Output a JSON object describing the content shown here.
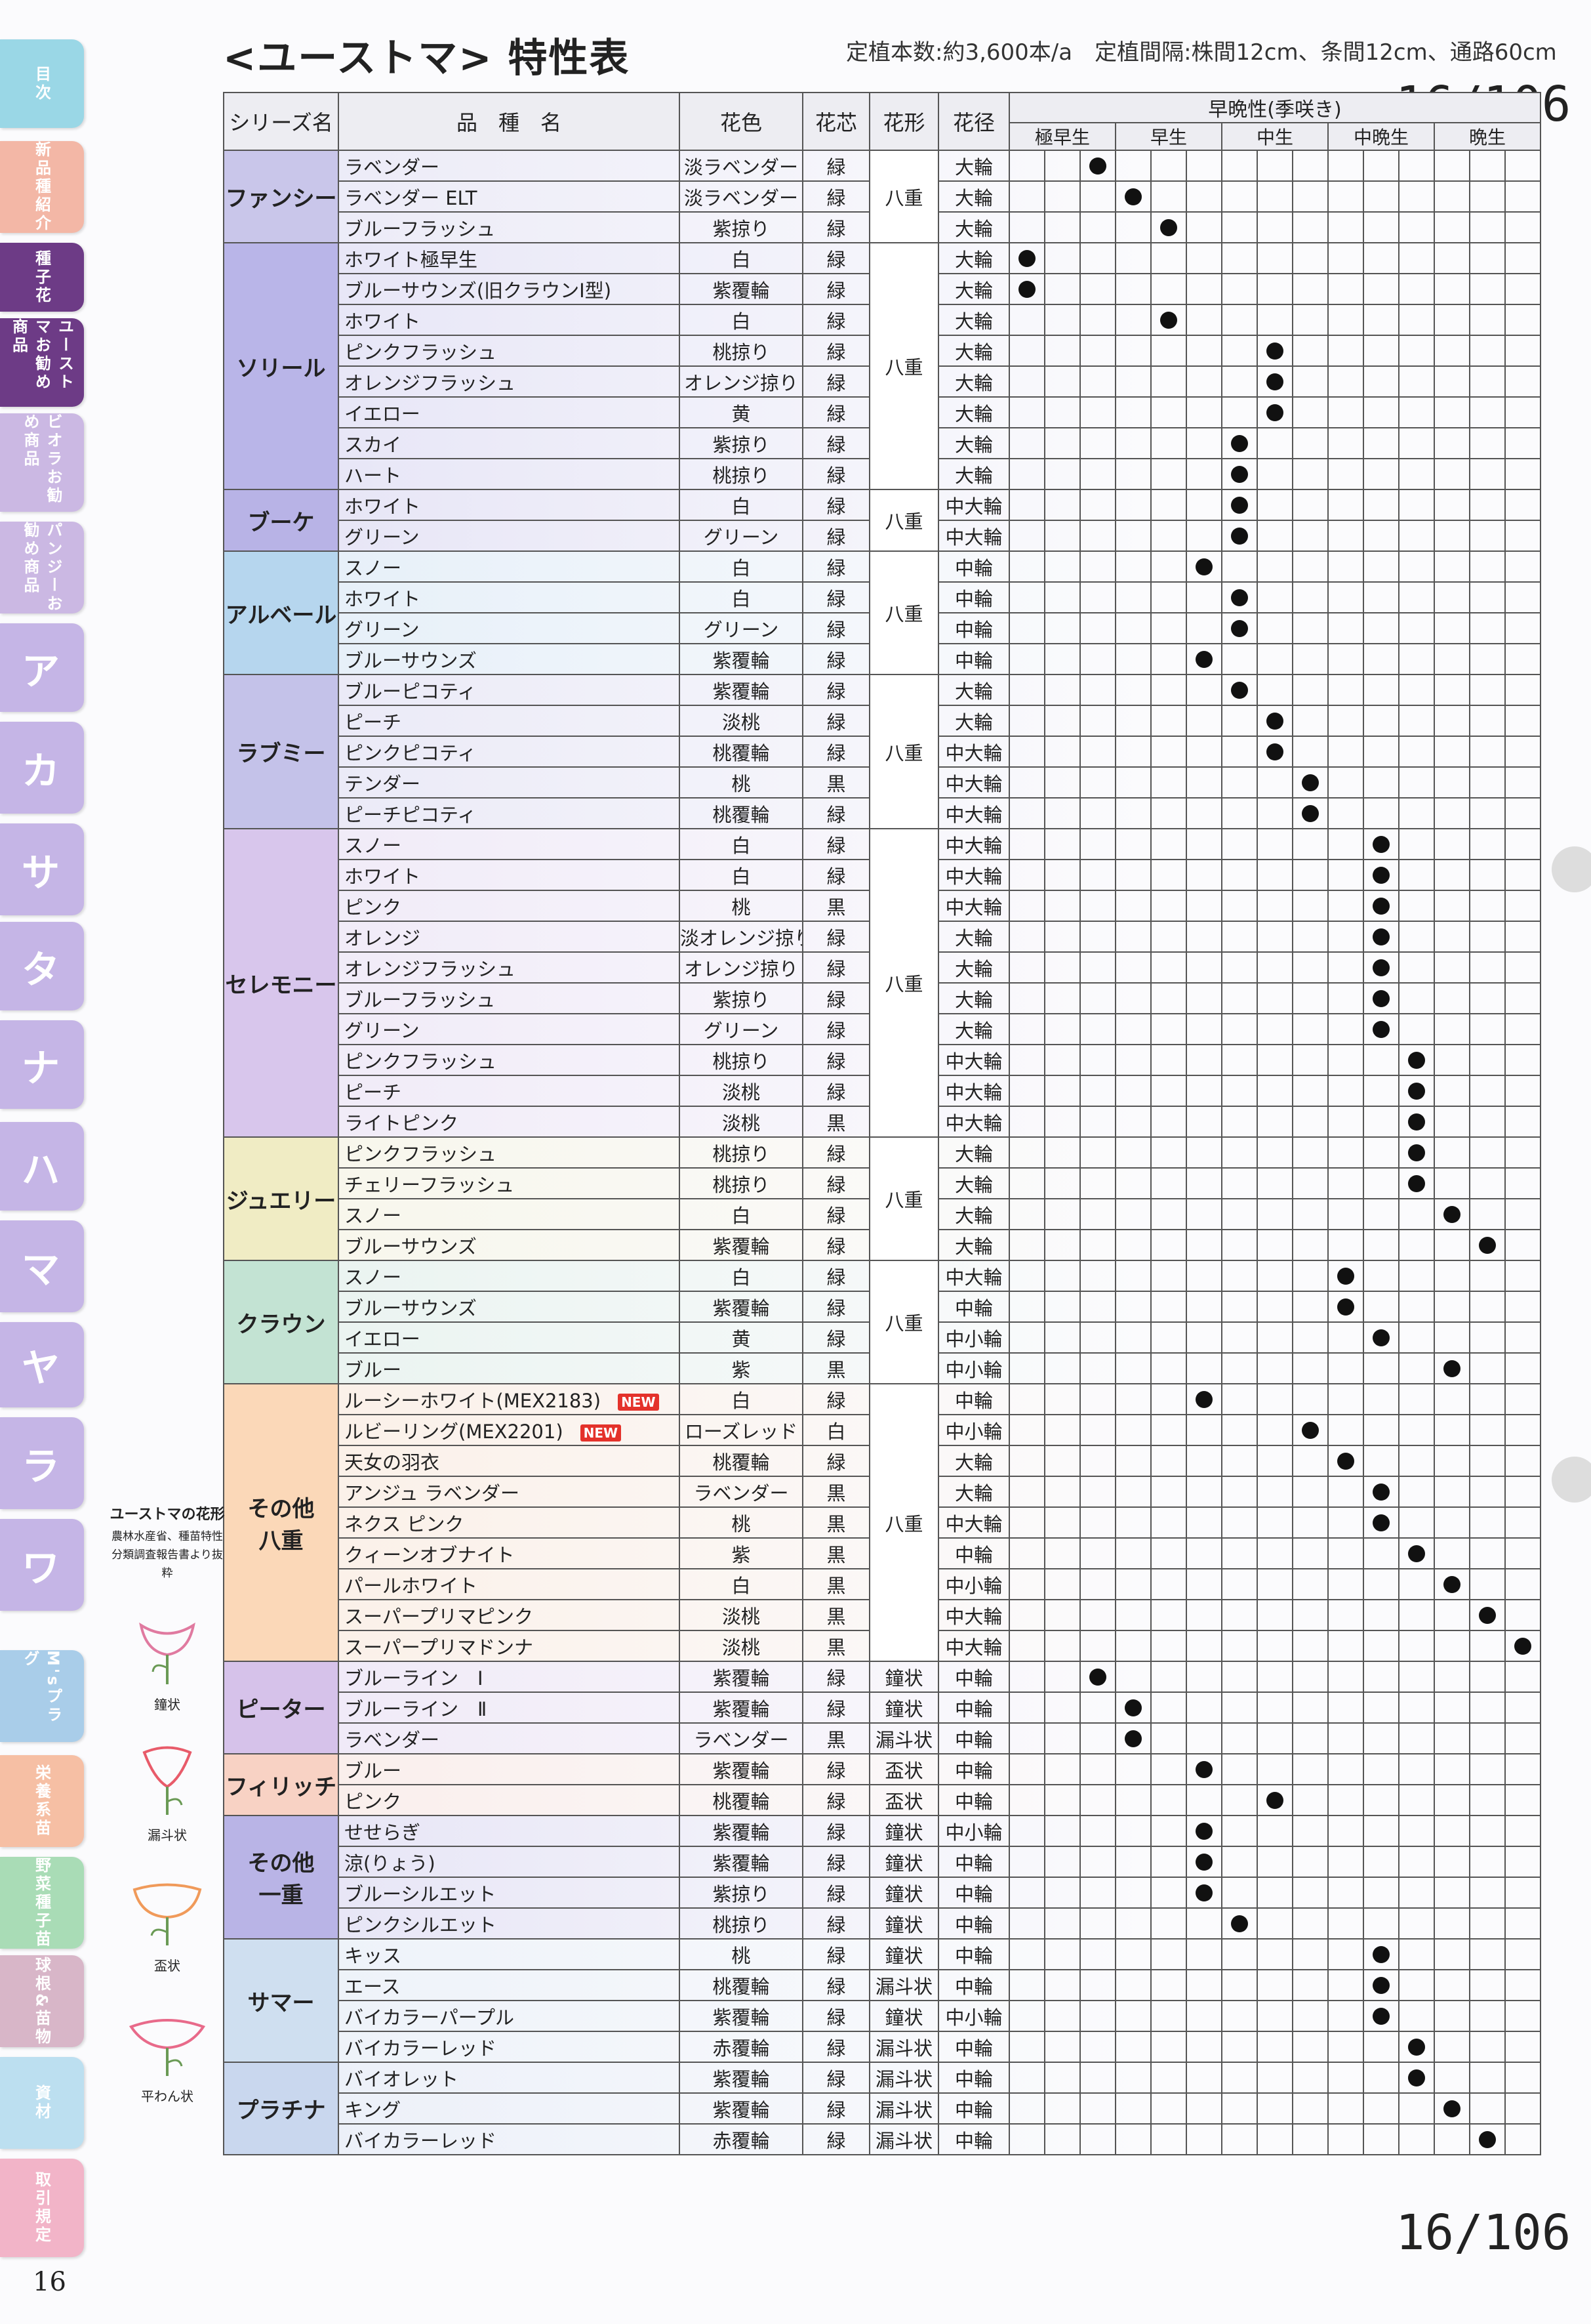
{
  "header": {
    "title": "<ユーストマ> 特性表",
    "info": "定植本数:約3,600本/a　定植間隔:株間12cm、条間12cm、通路60cm",
    "page_counter": "16/106"
  },
  "page_number": "16",
  "side_tabs": [
    {
      "label": "目次",
      "color": "#9ad7e6",
      "size": "small"
    },
    {
      "label": "新品種紹介",
      "color": "#f3b7a6",
      "size": "small"
    },
    {
      "label": "種子花",
      "color": "#6d3b86",
      "size": "small"
    },
    {
      "label": "ユーストマお勧め商品",
      "color": "#6d3b86",
      "size": "small"
    },
    {
      "label": "ビオラお勧め商品",
      "color": "#cbb8e3",
      "size": "small"
    },
    {
      "label": "パンジーお勧め商品",
      "color": "#cbb8e3",
      "size": "small"
    },
    {
      "label": "ア",
      "color": "#c5b5e6",
      "size": "big"
    },
    {
      "label": "カ",
      "color": "#c5b5e6",
      "size": "big"
    },
    {
      "label": "サ",
      "color": "#c5b5e6",
      "size": "big"
    },
    {
      "label": "タ",
      "color": "#c5b5e6",
      "size": "big"
    },
    {
      "label": "ナ",
      "color": "#c5b5e6",
      "size": "big"
    },
    {
      "label": "ハ",
      "color": "#c5b5e6",
      "size": "big"
    },
    {
      "label": "マ",
      "color": "#c5b5e6",
      "size": "big"
    },
    {
      "label": "ヤ",
      "color": "#c5b5e6",
      "size": "big"
    },
    {
      "label": "ラ",
      "color": "#c5b5e6",
      "size": "big"
    },
    {
      "label": "ワ",
      "color": "#c5b5e6",
      "size": "big"
    },
    {
      "label": "M'sプラグ",
      "color": "#a9cde9",
      "size": "small"
    },
    {
      "label": "栄養系苗",
      "color": "#f6bfa4",
      "size": "small"
    },
    {
      "label": "野菜種子苗",
      "color": "#a9dcb6",
      "size": "small"
    },
    {
      "label": "球根&苗物",
      "color": "#d8b6c8",
      "size": "small"
    },
    {
      "label": "資材",
      "color": "#bcdff0",
      "size": "small"
    },
    {
      "label": "取引規定",
      "color": "#f2b4c8",
      "size": "small"
    }
  ],
  "table": {
    "headers": {
      "series": "シリーズ名",
      "variety": "品　種　名",
      "color": "花色",
      "core": "花芯",
      "shape": "花形",
      "size": "花径",
      "earliness": "早晩性(季咲き)"
    },
    "sub_headers": [
      "極早生",
      "早生",
      "中生",
      "中晩生",
      "晩生"
    ],
    "row_groups": [
      {
        "series": "ファンシー",
        "color": "#c9c6ea",
        "shape": "八重",
        "rows": [
          {
            "name": "ラベンダー",
            "color": "淡ラベンダー",
            "core": "緑",
            "size": "大輪",
            "dot": 3
          },
          {
            "name": "ラベンダー ELT",
            "color": "淡ラベンダー",
            "core": "緑",
            "size": "大輪",
            "dot": 4
          },
          {
            "name": "ブルーフラッシュ",
            "color": "紫掠り",
            "core": "緑",
            "size": "大輪",
            "dot": 5
          }
        ]
      },
      {
        "series": "ソリール",
        "color": "#b9b5e8",
        "shape": "八重",
        "rows": [
          {
            "name": "ホワイト極早生",
            "color": "白",
            "core": "緑",
            "size": "大輪",
            "dot": 1
          },
          {
            "name": "ブルーサウンズ(旧クラウンI型)",
            "color": "紫覆輪",
            "core": "緑",
            "size": "大輪",
            "dot": 1
          },
          {
            "name": "ホワイト",
            "color": "白",
            "core": "緑",
            "size": "大輪",
            "dot": 5
          },
          {
            "name": "ピンクフラッシュ",
            "color": "桃掠り",
            "core": "緑",
            "size": "大輪",
            "dot": 8
          },
          {
            "name": "オレンジフラッシュ",
            "color": "オレンジ掠り",
            "core": "緑",
            "size": "大輪",
            "dot": 8
          },
          {
            "name": "イエロー",
            "color": "黄",
            "core": "緑",
            "size": "大輪",
            "dot": 8
          },
          {
            "name": "スカイ",
            "color": "紫掠り",
            "core": "緑",
            "size": "大輪",
            "dot": 7
          },
          {
            "name": "ハート",
            "color": "桃掠り",
            "core": "緑",
            "size": "大輪",
            "dot": 7
          }
        ]
      },
      {
        "series": "ブーケ",
        "color": "#b8b3e6",
        "shape": "八重",
        "rows": [
          {
            "name": "ホワイト",
            "color": "白",
            "core": "緑",
            "size": "中大輪",
            "dot": 7
          },
          {
            "name": "グリーン",
            "color": "グリーン",
            "core": "緑",
            "size": "中大輪",
            "dot": 7
          }
        ]
      },
      {
        "series": "アルベール",
        "color": "#b6d6ee",
        "shape": "八重",
        "rows": [
          {
            "name": "スノー",
            "color": "白",
            "core": "緑",
            "size": "中輪",
            "dot": 6
          },
          {
            "name": "ホワイト",
            "color": "白",
            "core": "緑",
            "size": "中輪",
            "dot": 7
          },
          {
            "name": "グリーン",
            "color": "グリーン",
            "core": "緑",
            "size": "中輪",
            "dot": 7
          },
          {
            "name": "ブルーサウンズ",
            "color": "紫覆輪",
            "core": "緑",
            "size": "中輪",
            "dot": 6
          }
        ]
      },
      {
        "series": "ラブミー",
        "color": "#c4c2e9",
        "shape": "八重",
        "rows": [
          {
            "name": "ブルーピコティ",
            "color": "紫覆輪",
            "core": "緑",
            "size": "大輪",
            "dot": 7
          },
          {
            "name": "ピーチ",
            "color": "淡桃",
            "core": "緑",
            "size": "大輪",
            "dot": 8
          },
          {
            "name": "ピンクピコティ",
            "color": "桃覆輪",
            "core": "緑",
            "size": "中大輪",
            "dot": 8
          },
          {
            "name": "テンダー",
            "color": "桃",
            "core": "黒",
            "size": "中大輪",
            "dot": 9
          },
          {
            "name": "ピーチピコティ",
            "color": "桃覆輪",
            "core": "緑",
            "size": "中大輪",
            "dot": 9
          }
        ]
      },
      {
        "series": "セレモニー",
        "color": "#d8c6ec",
        "shape": "八重",
        "rows": [
          {
            "name": "スノー",
            "color": "白",
            "core": "緑",
            "size": "中大輪",
            "dot": 11
          },
          {
            "name": "ホワイト",
            "color": "白",
            "core": "緑",
            "size": "中大輪",
            "dot": 11
          },
          {
            "name": "ピンク",
            "color": "桃",
            "core": "黒",
            "size": "中大輪",
            "dot": 11
          },
          {
            "name": "オレンジ",
            "color": "淡オレンジ掠り",
            "core": "緑",
            "size": "大輪",
            "dot": 11
          },
          {
            "name": "オレンジフラッシュ",
            "color": "オレンジ掠り",
            "core": "緑",
            "size": "大輪",
            "dot": 11
          },
          {
            "name": "ブルーフラッシュ",
            "color": "紫掠り",
            "core": "緑",
            "size": "大輪",
            "dot": 11
          },
          {
            "name": "グリーン",
            "color": "グリーン",
            "core": "緑",
            "size": "大輪",
            "dot": 11
          },
          {
            "name": "ピンクフラッシュ",
            "color": "桃掠り",
            "core": "緑",
            "size": "中大輪",
            "dot": 12
          },
          {
            "name": "ピーチ",
            "color": "淡桃",
            "core": "緑",
            "size": "中大輪",
            "dot": 12
          },
          {
            "name": "ライトピンク",
            "color": "淡桃",
            "core": "黒",
            "size": "中大輪",
            "dot": 12
          }
        ]
      },
      {
        "series": "ジュエリー",
        "color": "#f0ecc4",
        "shape": "八重",
        "rows": [
          {
            "name": "ピンクフラッシュ",
            "color": "桃掠り",
            "core": "緑",
            "size": "大輪",
            "dot": 12
          },
          {
            "name": "チェリーフラッシュ",
            "color": "桃掠り",
            "core": "緑",
            "size": "大輪",
            "dot": 12
          },
          {
            "name": "スノー",
            "color": "白",
            "core": "緑",
            "size": "大輪",
            "dot": 13
          },
          {
            "name": "ブルーサウンズ",
            "color": "紫覆輪",
            "core": "緑",
            "size": "大輪",
            "dot": 14
          }
        ]
      },
      {
        "series": "クラウン",
        "color": "#c3e3d3",
        "shape": "八重",
        "rows": [
          {
            "name": "スノー",
            "color": "白",
            "core": "緑",
            "size": "中大輪",
            "dot": 10
          },
          {
            "name": "ブルーサウンズ",
            "color": "紫覆輪",
            "core": "緑",
            "size": "中輪",
            "dot": 10
          },
          {
            "name": "イエロー",
            "color": "黄",
            "core": "緑",
            "size": "中小輪",
            "dot": 11
          },
          {
            "name": "ブルー",
            "color": "紫",
            "core": "黒",
            "size": "中小輪",
            "dot": 13
          }
        ]
      },
      {
        "series": "その他\n八重",
        "color": "#fbd8b8",
        "shape": "八重",
        "rows": [
          {
            "name": "ルーシーホワイト(MEX2183)",
            "new": "NEW",
            "color": "白",
            "core": "緑",
            "size": "中輪",
            "dot": 6
          },
          {
            "name": "ルビーリング(MEX2201)",
            "new": "NEW",
            "color": "ローズレッド",
            "core": "白",
            "size": "中小輪",
            "dot": 9
          },
          {
            "name": "天女の羽衣",
            "color": "桃覆輪",
            "core": "緑",
            "size": "大輪",
            "dot": 10
          },
          {
            "name": "アンジュ ラベンダー",
            "color": "ラベンダー",
            "core": "黒",
            "size": "大輪",
            "dot": 11
          },
          {
            "name": "ネクス ピンク",
            "color": "桃",
            "core": "黒",
            "size": "中大輪",
            "dot": 11
          },
          {
            "name": "クィーンオブナイト",
            "color": "紫",
            "core": "黒",
            "size": "中輪",
            "dot": 12
          },
          {
            "name": "パールホワイト",
            "color": "白",
            "core": "黒",
            "size": "中小輪",
            "dot": 13
          },
          {
            "name": "スーパープリマピンク",
            "color": "淡桃",
            "core": "黒",
            "size": "中大輪",
            "dot": 14
          },
          {
            "name": "スーパープリマドンナ",
            "color": "淡桃",
            "core": "黒",
            "size": "中大輪",
            "dot": 15
          }
        ]
      },
      {
        "series": "ピーター",
        "color": "#d6c2ea",
        "shape": null,
        "rows": [
          {
            "name": "ブルーライン　Ⅰ",
            "color": "紫覆輪",
            "core": "緑",
            "shape": "鐘状",
            "size": "中輪",
            "dot": 3
          },
          {
            "name": "ブルーライン　Ⅱ",
            "color": "紫覆輪",
            "core": "緑",
            "shape": "鐘状",
            "size": "中輪",
            "dot": 4
          },
          {
            "name": "ラベンダー",
            "color": "ラベンダー",
            "core": "黒",
            "shape": "漏斗状",
            "size": "中輪",
            "dot": 4
          }
        ]
      },
      {
        "series": "フィリッチ",
        "color": "#f8d2c4",
        "shape": null,
        "rows": [
          {
            "name": "ブルー",
            "color": "紫覆輪",
            "core": "緑",
            "shape": "盃状",
            "size": "中輪",
            "dot": 6
          },
          {
            "name": "ピンク",
            "color": "桃覆輪",
            "core": "緑",
            "shape": "盃状",
            "size": "中輪",
            "dot": 8
          }
        ]
      },
      {
        "series": "その他\n一重",
        "color": "#b9b4e6",
        "shape": null,
        "rows": [
          {
            "name": "せせらぎ",
            "color": "紫覆輪",
            "core": "緑",
            "shape": "鐘状",
            "size": "中小輪",
            "dot": 6
          },
          {
            "name": "涼(りょう)",
            "color": "紫覆輪",
            "core": "緑",
            "shape": "鐘状",
            "size": "中輪",
            "dot": 6
          },
          {
            "name": "ブルーシルエット",
            "color": "紫掠り",
            "core": "緑",
            "shape": "鐘状",
            "size": "中輪",
            "dot": 6
          },
          {
            "name": "ピンクシルエット",
            "color": "桃掠り",
            "core": "緑",
            "shape": "鐘状",
            "size": "中輪",
            "dot": 7
          }
        ]
      },
      {
        "series": "サマー",
        "color": "#cfdff0",
        "shape": null,
        "rows": [
          {
            "name": "キッス",
            "color": "桃",
            "core": "緑",
            "shape": "鐘状",
            "size": "中輪",
            "dot": 11
          },
          {
            "name": "エース",
            "color": "桃覆輪",
            "core": "緑",
            "shape": "漏斗状",
            "size": "中輪",
            "dot": 11
          },
          {
            "name": "バイカラーパープル",
            "color": "紫覆輪",
            "core": "緑",
            "shape": "鐘状",
            "size": "中小輪",
            "dot": 11
          },
          {
            "name": "バイカラーレッド",
            "color": "赤覆輪",
            "core": "緑",
            "shape": "漏斗状",
            "size": "中輪",
            "dot": 12
          }
        ]
      },
      {
        "series": "プラチナ",
        "color": "#c9d7ee",
        "shape": null,
        "rows": [
          {
            "name": "バイオレット",
            "color": "紫覆輪",
            "core": "緑",
            "shape": "漏斗状",
            "size": "中輪",
            "dot": 12
          },
          {
            "name": "キング",
            "color": "紫覆輪",
            "core": "緑",
            "shape": "漏斗状",
            "size": "中輪",
            "dot": 13
          },
          {
            "name": "バイカラーレッド",
            "color": "赤覆輪",
            "core": "緑",
            "shape": "漏斗状",
            "size": "中輪",
            "dot": 14
          }
        ]
      }
    ]
  },
  "legend": {
    "title": "ユーストマの花形",
    "source": "農林水産省、種苗特性分類調査報告書より抜粋",
    "shapes": [
      "鐘状",
      "漏斗状",
      "盃状",
      "平わん状"
    ],
    "colors": [
      "#e07aa0",
      "#e85b6a",
      "#f09a5a",
      "#e86a8a"
    ]
  }
}
